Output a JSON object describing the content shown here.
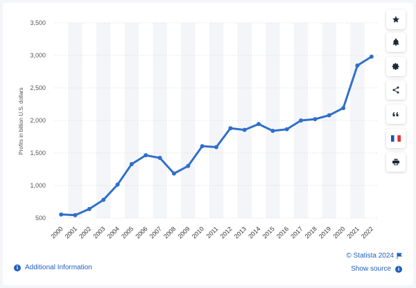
{
  "chart_data": {
    "type": "line",
    "title": "",
    "xlabel": "",
    "ylabel": "Profits in billion U.S. dollars",
    "ylim": [
      500,
      3500
    ],
    "yticks": [
      500,
      1000,
      1500,
      2000,
      2500,
      3000,
      3500
    ],
    "ytick_labels": [
      "500",
      "1,000",
      "1,500",
      "2,000",
      "2,500",
      "3,000",
      "3,500"
    ],
    "categories": [
      "2000",
      "2001",
      "2002",
      "2003",
      "2004",
      "2005",
      "2006",
      "2007",
      "2008",
      "2009",
      "2010",
      "2011",
      "2012",
      "2013",
      "2014",
      "2015",
      "2016",
      "2017",
      "2018",
      "2019",
      "2020",
      "2021",
      "2022"
    ],
    "series": [
      {
        "values": [
          555,
          545,
          640,
          780,
          1015,
          1330,
          1465,
          1425,
          1185,
          1300,
          1605,
          1590,
          1880,
          1855,
          1945,
          1840,
          1865,
          2000,
          2020,
          2080,
          2190,
          2845,
          2980
        ],
        "color": "#2f6fcb"
      }
    ],
    "grid": true,
    "legend": "none"
  },
  "sidebar": {
    "buttons": [
      {
        "name": "star-icon"
      },
      {
        "name": "bell-icon"
      },
      {
        "name": "gear-icon"
      },
      {
        "name": "share-icon"
      },
      {
        "name": "quote-icon"
      },
      {
        "name": "flag-icon"
      },
      {
        "name": "print-icon"
      }
    ]
  },
  "footer": {
    "additional_info": "Additional Information",
    "copyright": "© Statista 2024",
    "show_source": "Show source"
  },
  "colors": {
    "line": "#2f6fcb",
    "band": "#f4f5f8",
    "grid": "#d9dde3",
    "link": "#1f5fbf"
  }
}
